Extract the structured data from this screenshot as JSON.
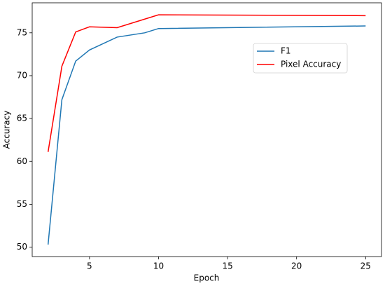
{
  "chart_data": {
    "type": "line",
    "x_label": "Epoch",
    "y_label": "Accuracy",
    "series": [
      {
        "name": "F1",
        "color": "#1f77b4",
        "x": [
          2,
          3,
          4,
          5,
          7,
          9,
          10,
          25
        ],
        "values": [
          50.3,
          67.2,
          71.7,
          73.0,
          74.5,
          75.0,
          75.5,
          75.8
        ]
      },
      {
        "name": "Pixel Accuracy",
        "color": "#ff0000",
        "x": [
          2,
          3,
          4,
          5,
          7,
          10,
          25
        ],
        "values": [
          61.1,
          71.1,
          75.1,
          75.7,
          75.6,
          77.1,
          77.0
        ]
      }
    ],
    "xlim": [
      0.85,
      26.15
    ],
    "xticks": [
      5,
      10,
      15,
      20,
      25
    ],
    "ylim": [
      48.9,
      78.5
    ],
    "yticks": [
      50,
      55,
      60,
      65,
      70,
      75
    ],
    "grid": false,
    "legend": "upper right"
  }
}
